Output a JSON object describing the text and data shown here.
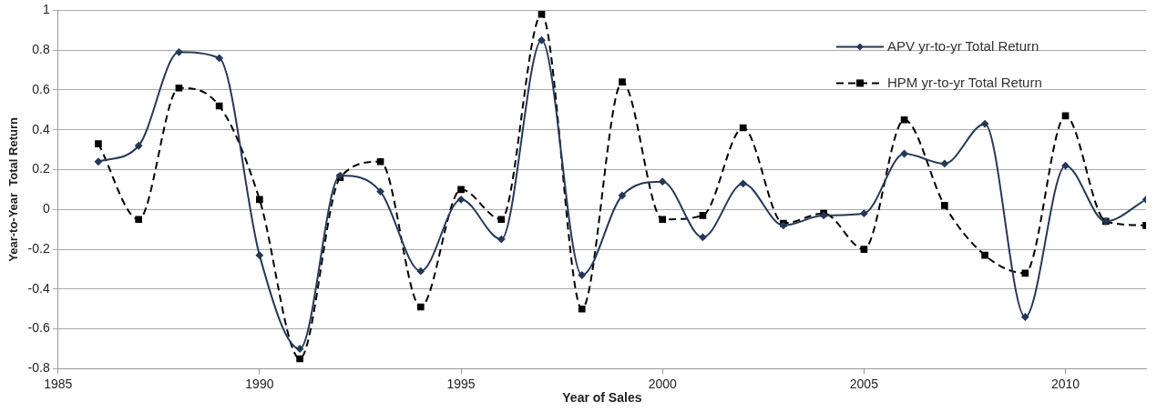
{
  "chart_data": {
    "type": "line",
    "xlabel": "Year of Sales",
    "ylabel": "Year-to-Year  Total Return",
    "x": [
      1986,
      1987,
      1988,
      1989,
      1990,
      1991,
      1992,
      1993,
      1994,
      1995,
      1996,
      1997,
      1998,
      1999,
      2000,
      2001,
      2002,
      2003,
      2004,
      2005,
      2006,
      2007,
      2008,
      2009,
      2010,
      2011,
      2012
    ],
    "series": [
      {
        "name": "APV yr-to-yr Total Return",
        "color": "#243859",
        "marker": "diamond",
        "line_style": "solid",
        "values": [
          0.24,
          0.32,
          0.79,
          0.76,
          -0.23,
          -0.7,
          0.17,
          0.09,
          -0.31,
          0.05,
          -0.15,
          0.85,
          -0.33,
          0.07,
          0.14,
          -0.14,
          0.13,
          -0.08,
          -0.03,
          -0.02,
          0.28,
          0.23,
          0.43,
          -0.54,
          0.22,
          -0.06,
          0.05
        ]
      },
      {
        "name": "HPM yr-to-yr Total Return",
        "color": "#000000",
        "marker": "square",
        "line_style": "dashed",
        "values": [
          0.33,
          -0.05,
          0.61,
          0.52,
          0.05,
          -0.75,
          0.16,
          0.24,
          -0.49,
          0.1,
          -0.05,
          0.98,
          -0.5,
          0.64,
          -0.05,
          -0.03,
          0.41,
          -0.07,
          -0.02,
          -0.2,
          0.45,
          0.02,
          -0.23,
          -0.32,
          0.47,
          -0.06,
          -0.08
        ]
      }
    ],
    "xlim": [
      1985,
      2012
    ],
    "xticks": [
      1985,
      1990,
      1995,
      2000,
      2005,
      2010
    ],
    "ylim": [
      -0.8,
      1
    ],
    "yticks": [
      -0.8,
      -0.6,
      -0.4,
      -0.2,
      0,
      0.2,
      0.4,
      0.6,
      0.8,
      1
    ],
    "grid": "y",
    "legend": "top right"
  }
}
